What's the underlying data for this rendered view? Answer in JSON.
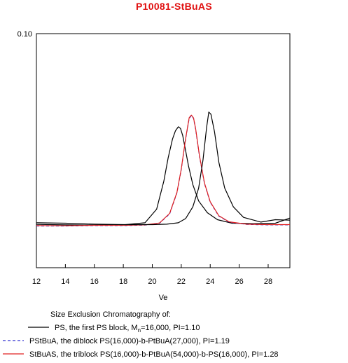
{
  "chart_data": {
    "type": "line",
    "title": "P10081-StBuAS",
    "xlabel": "Ve",
    "ylabel": "",
    "xlim": [
      12,
      29.5
    ],
    "ylim": [
      0.0,
      0.1
    ],
    "x_ticks": [
      12,
      14,
      16,
      18,
      20,
      22,
      24,
      26,
      28
    ],
    "x_tick_labels": [
      "12",
      "14",
      "16",
      "18",
      "20",
      "22",
      "24",
      "26",
      "28"
    ],
    "y_ticks": [
      0.1
    ],
    "y_tick_labels": [
      "0.10"
    ],
    "grid": false,
    "legend_title": "Size Exclusion Chromatography of:",
    "legend_position": "bottom",
    "series": [
      {
        "label_prefix": "PS, the first PS block, M",
        "label_sub": "n",
        "label_suffix": "=16,000, PI=1.10",
        "color": "#000000",
        "dash": "solid",
        "x": [
          12.0,
          14.0,
          16.0,
          18.0,
          19.5,
          20.3,
          20.8,
          21.1,
          21.4,
          21.6,
          21.8,
          21.95,
          22.1,
          22.3,
          22.5,
          22.8,
          23.2,
          23.8,
          24.5,
          25.5,
          27,
          28.5,
          29.5
        ],
        "y": [
          0.0185,
          0.0183,
          0.0182,
          0.0183,
          0.0192,
          0.025,
          0.037,
          0.047,
          0.055,
          0.0585,
          0.0602,
          0.0595,
          0.0565,
          0.05,
          0.0435,
          0.0355,
          0.0285,
          0.0235,
          0.0205,
          0.019,
          0.0188,
          0.019,
          0.0212
        ]
      },
      {
        "label": "PStBuA, the diblock PS(16,000)-b-PtBuA(27,000),  PI=1.19",
        "color": "#3030d0",
        "dash": "dashed",
        "x": [
          12.0,
          14.0,
          16.0,
          18.0,
          19.5,
          20.5,
          21.2,
          21.7,
          22.0,
          22.3,
          22.55,
          22.7,
          22.85,
          23.0,
          23.25,
          23.6,
          24.0,
          24.6,
          25.3,
          26.5,
          28,
          29.5
        ],
        "y": [
          0.0178,
          0.0178,
          0.018,
          0.018,
          0.0182,
          0.019,
          0.023,
          0.032,
          0.042,
          0.055,
          0.0638,
          0.065,
          0.0638,
          0.059,
          0.048,
          0.036,
          0.028,
          0.022,
          0.0195,
          0.0185,
          0.0183,
          0.0183
        ]
      },
      {
        "label": "StBuAS, the triblock PS(16,000)-b-PtBuA(54,000)-b-PS(16,000), PI=1.28",
        "color": "#e02020",
        "dash": "solid",
        "x": [
          12.0,
          14.0,
          16.0,
          18.0,
          19.5,
          20.5,
          21.2,
          21.7,
          22.0,
          22.3,
          22.55,
          22.7,
          22.85,
          23.0,
          23.25,
          23.6,
          24.0,
          24.6,
          25.3,
          26.5,
          28,
          29.5
        ],
        "y": [
          0.018,
          0.0179,
          0.0181,
          0.0181,
          0.0183,
          0.0191,
          0.0232,
          0.0322,
          0.0422,
          0.0552,
          0.0641,
          0.0652,
          0.064,
          0.0592,
          0.0482,
          0.0362,
          0.0282,
          0.0222,
          0.0196,
          0.0186,
          0.0184,
          0.0184
        ]
      },
      {
        "label": "",
        "color": "#000000",
        "dash": "solid",
        "x": [
          12.0,
          14.0,
          16.0,
          18.0,
          20.0,
          21.0,
          21.8,
          22.3,
          22.8,
          23.2,
          23.5,
          23.75,
          23.9,
          24.05,
          24.3,
          24.6,
          25.0,
          25.6,
          26.3,
          27.5,
          28.5,
          29.5
        ],
        "y": [
          0.0192,
          0.019,
          0.0186,
          0.0184,
          0.0184,
          0.0186,
          0.0192,
          0.021,
          0.026,
          0.034,
          0.046,
          0.06,
          0.0665,
          0.0655,
          0.058,
          0.045,
          0.034,
          0.026,
          0.0215,
          0.0195,
          0.0205,
          0.0203
        ]
      }
    ]
  }
}
